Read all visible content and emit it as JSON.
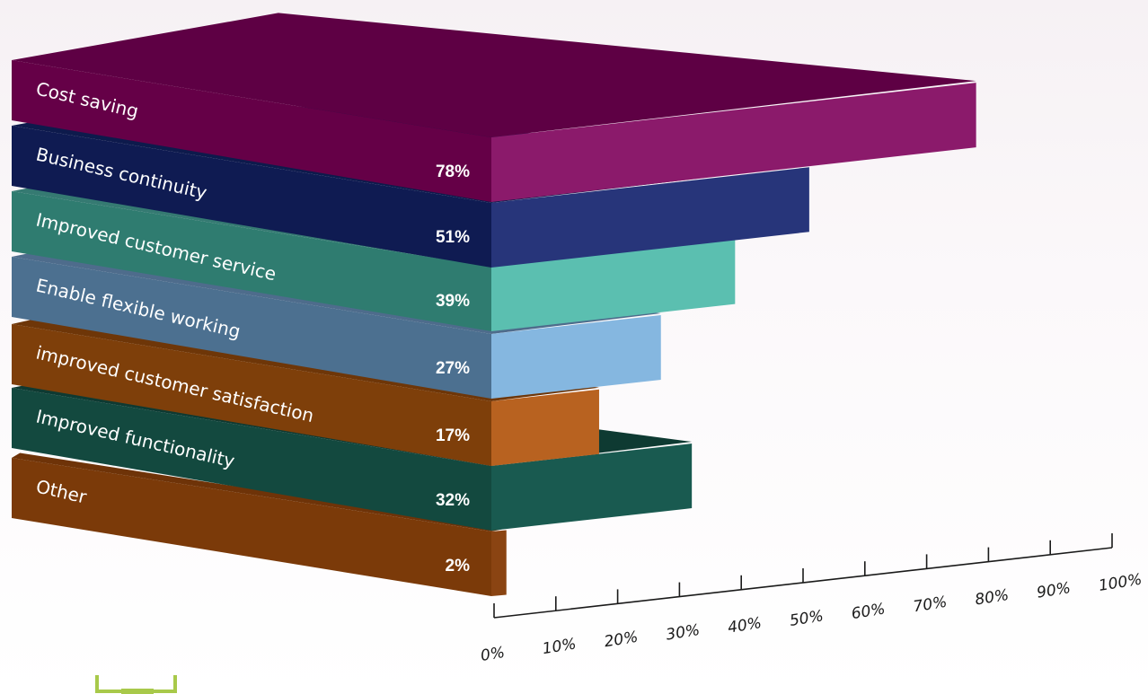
{
  "chart_data": {
    "type": "bar",
    "orientation": "horizontal-3d",
    "categories": [
      "Cost saving",
      "Business continuity",
      "Improved customer service",
      "Enable flexible working",
      "improved customer satisfaction",
      "Improved functionality",
      "Other"
    ],
    "values": [
      78,
      51,
      39,
      27,
      17,
      32,
      2
    ],
    "value_labels": [
      "78%",
      "51%",
      "39%",
      "27%",
      "17%",
      "32%",
      "2%"
    ],
    "xlim": [
      0,
      100
    ],
    "x_ticks": [
      0,
      10,
      20,
      30,
      40,
      50,
      60,
      70,
      80,
      90,
      100
    ],
    "x_tick_labels": [
      "0%",
      "10%",
      "20%",
      "30%",
      "40%",
      "50%",
      "60%",
      "70%",
      "80%",
      "90%",
      "100%"
    ],
    "title": "",
    "xlabel": "",
    "ylabel": "",
    "grid": false,
    "legend": "none",
    "colors": {
      "bars": [
        {
          "front": "#8b1a6b",
          "top": "#5e0044",
          "side": "#650047"
        },
        {
          "front": "#27357a",
          "top": "#0d1a4c",
          "side": "#0f1b52"
        },
        {
          "front": "#5bbfb0",
          "top": "#357a72",
          "side": "#2f7c70"
        },
        {
          "front": "#85b7e0",
          "top": "#4e6c8c",
          "side": "#4c7090"
        },
        {
          "front": "#b86220",
          "top": "#6e3608",
          "side": "#7e3f0a"
        },
        {
          "front": "#195a50",
          "top": "#0e3a32",
          "side": "#13493f"
        },
        {
          "front": "#8a4412",
          "top": "#6e3308",
          "side": "#7b3a09"
        }
      ],
      "axis": "#1a1a1a"
    }
  }
}
